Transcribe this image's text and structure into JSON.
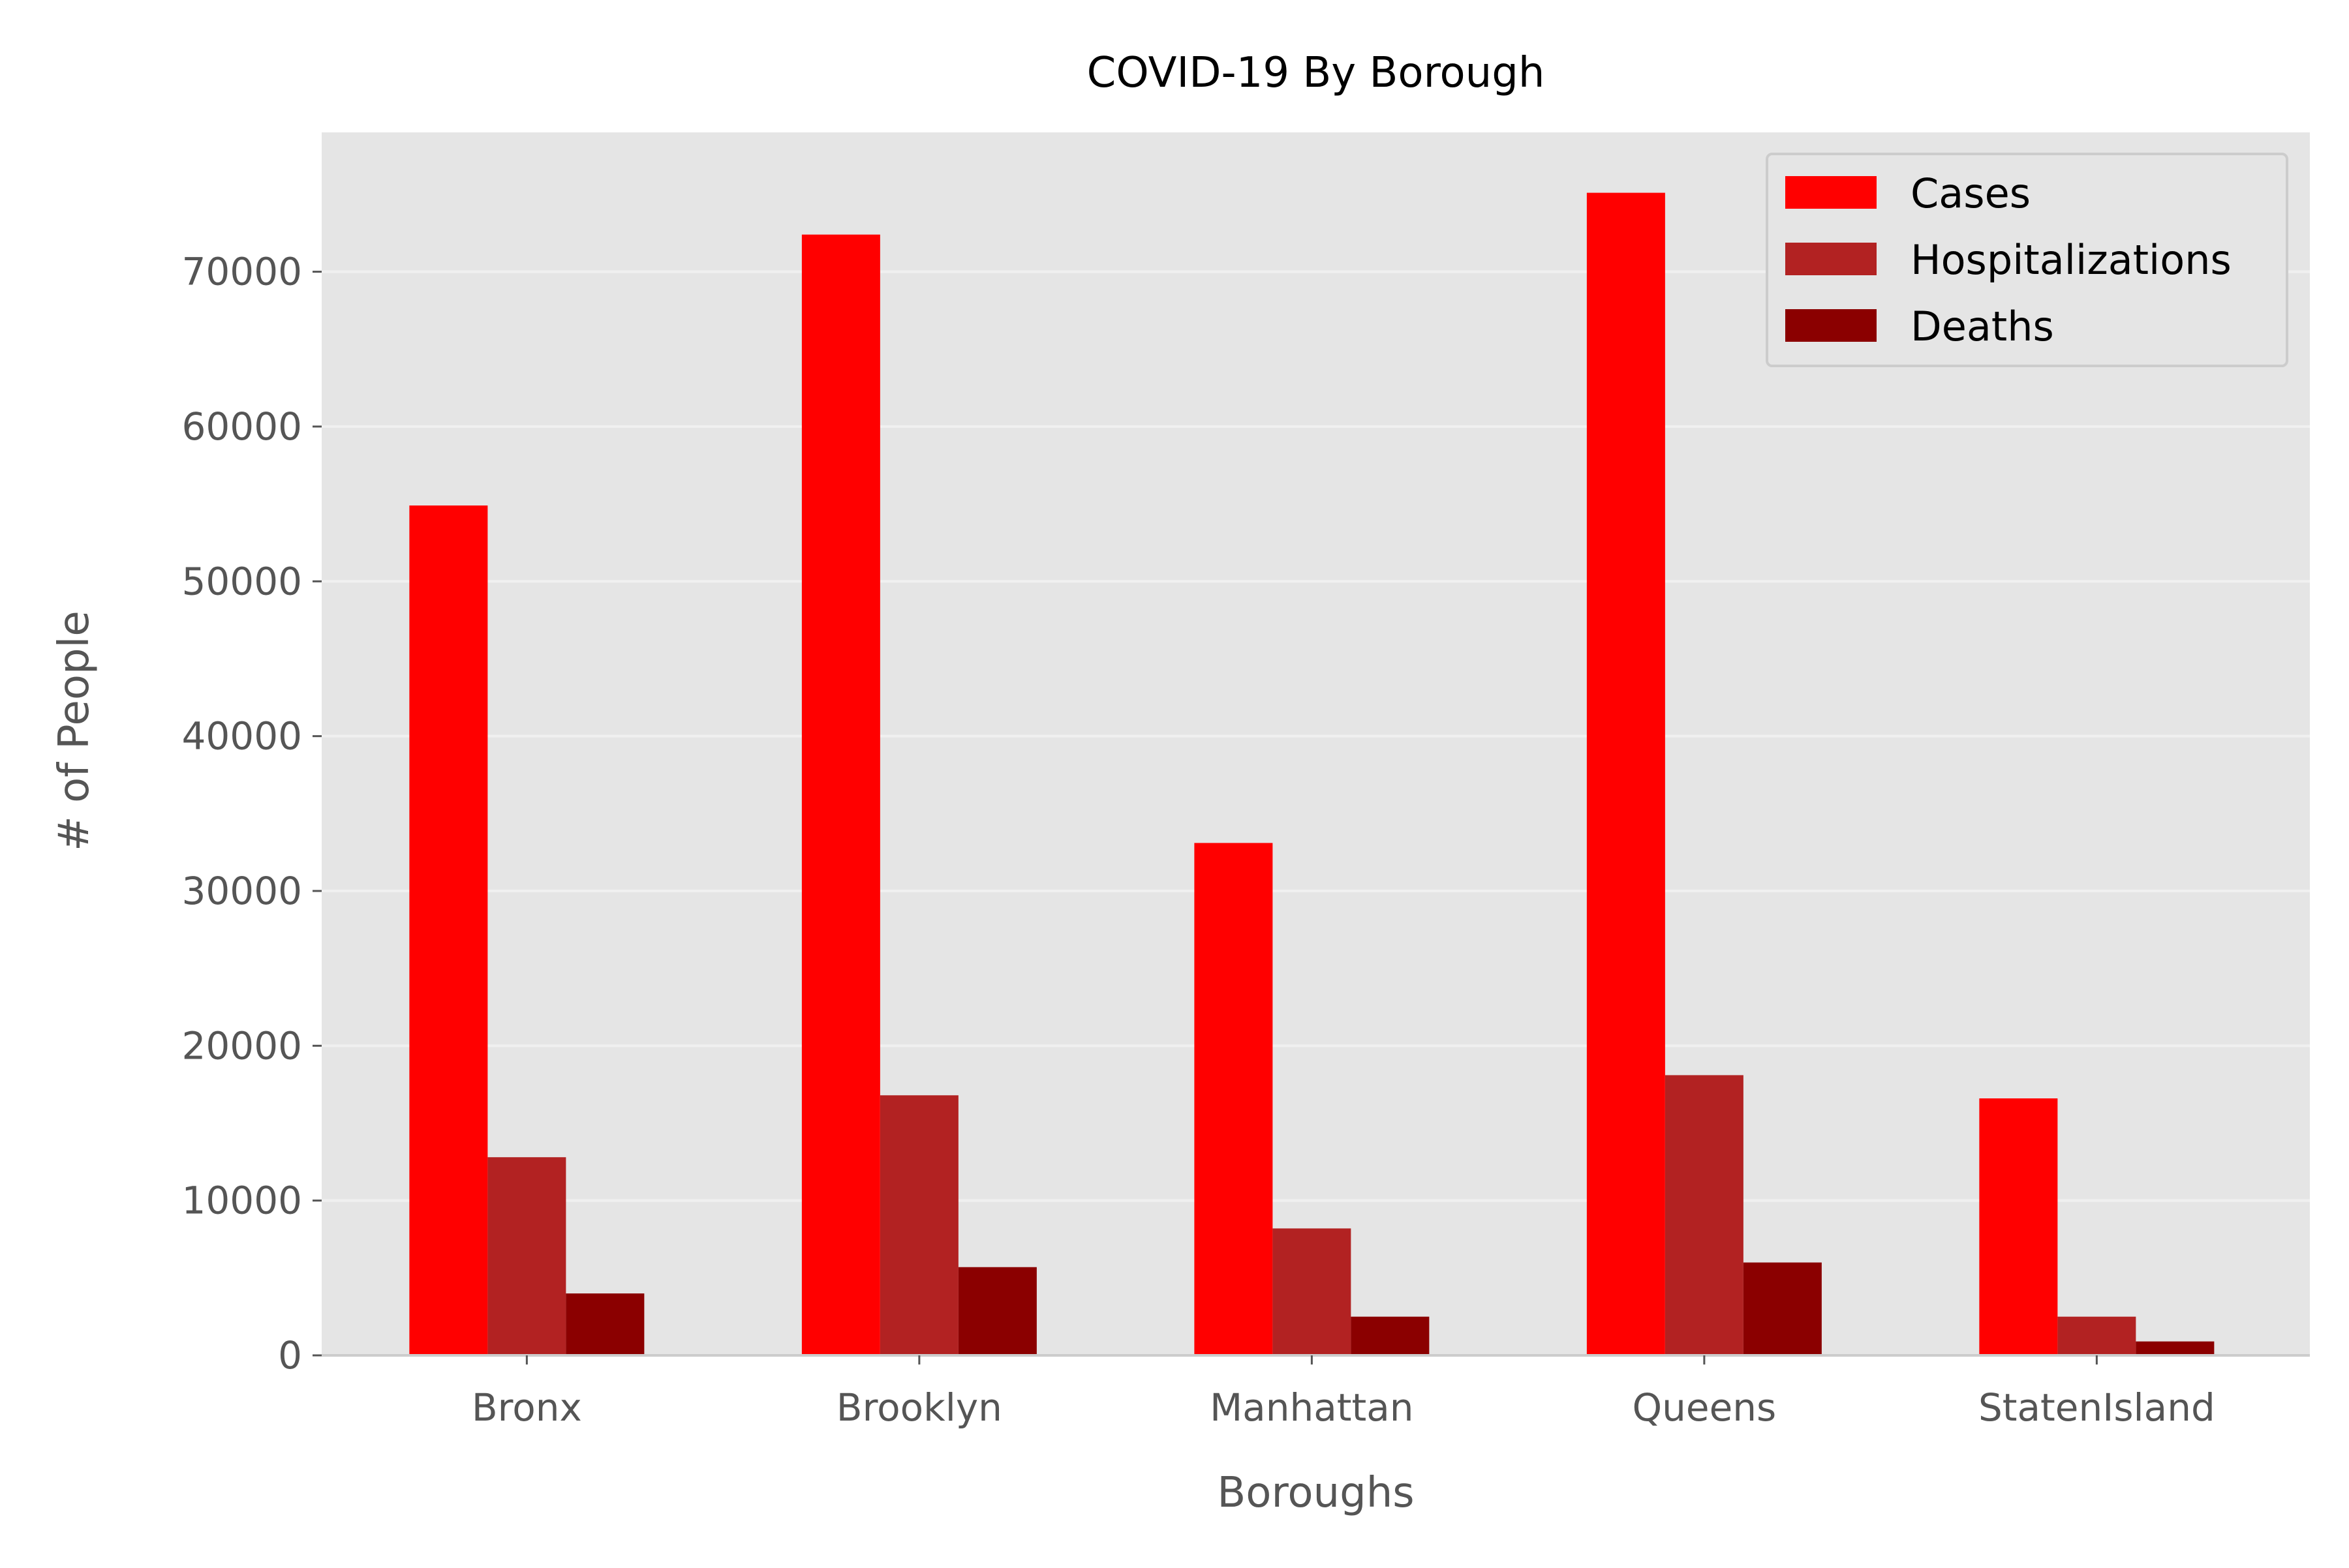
{
  "chart_data": {
    "type": "bar",
    "title": "COVID-19 By Borough",
    "xlabel": "Boroughs",
    "ylabel": "# of People",
    "categories": [
      "Bronx",
      "Brooklyn",
      "Manhattan",
      "Queens",
      "StatenIsland"
    ],
    "series": [
      {
        "name": "Cases",
        "color": "#ff0000",
        "values": [
          54900,
          72400,
          33100,
          75100,
          16600
        ]
      },
      {
        "name": "Hospitalizations",
        "color": "#b22222",
        "values": [
          12800,
          16800,
          8200,
          18100,
          2500
        ]
      },
      {
        "name": "Deaths",
        "color": "#8b0000",
        "values": [
          4000,
          5700,
          2500,
          6000,
          900
        ]
      }
    ],
    "ylim": [
      0,
      79000
    ],
    "yticks": [
      0,
      10000,
      20000,
      30000,
      40000,
      50000,
      60000,
      70000
    ],
    "ytick_labels": [
      "0",
      "10000",
      "20000",
      "30000",
      "40000",
      "50000",
      "60000",
      "70000"
    ],
    "grid": true,
    "legend_position": "top-right",
    "colors": {
      "plot_background": "#e5e5e5",
      "grid": "#f0f0f0",
      "tick_text": "#555555",
      "title_text": "#000000"
    }
  }
}
